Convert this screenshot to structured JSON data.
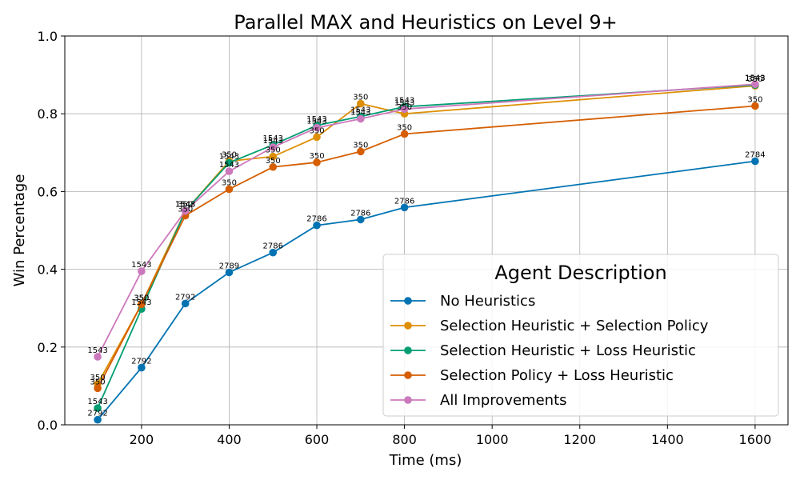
{
  "chart_data": {
    "type": "line",
    "title": "Parallel MAX and Heuristics on Level 9+",
    "xlabel": "Time (ms)",
    "ylabel": "Win Percentage",
    "xlim": [
      25,
      1675
    ],
    "ylim": [
      0.0,
      1.0
    ],
    "xticks": [
      200,
      400,
      600,
      800,
      1000,
      1200,
      1400,
      1600
    ],
    "yticks": [
      0.0,
      0.2,
      0.4,
      0.6,
      0.8,
      1.0
    ],
    "grid": true,
    "legend": {
      "title": "Agent Description",
      "placement": "lower-right"
    },
    "series": [
      {
        "name": "No Heuristics",
        "color": "#0173b2",
        "x": [
          100,
          200,
          300,
          400,
          500,
          600,
          700,
          800,
          1600
        ],
        "y": [
          0.013,
          0.147,
          0.312,
          0.392,
          0.443,
          0.513,
          0.528,
          0.559,
          0.678
        ],
        "labels": [
          "2792",
          "2792",
          "2792",
          "2789",
          "2786",
          "2786",
          "2786",
          "2786",
          "2784"
        ]
      },
      {
        "name": "Selection Heuristic + Selection Policy",
        "color": "#de8f05",
        "x": [
          100,
          200,
          300,
          400,
          500,
          600,
          700,
          800,
          1600
        ],
        "y": [
          0.105,
          0.31,
          0.55,
          0.678,
          0.69,
          0.74,
          0.826,
          0.8,
          0.872
        ],
        "labels": [
          "350",
          "350",
          "350",
          "350",
          "350",
          "350",
          "350",
          "350",
          "350"
        ]
      },
      {
        "name": "Selection Heuristic + Loss Heuristic",
        "color": "#029e73",
        "x": [
          100,
          200,
          300,
          400,
          500,
          600,
          700,
          800,
          1600
        ],
        "y": [
          0.043,
          0.298,
          0.55,
          0.674,
          0.72,
          0.77,
          0.793,
          0.818,
          0.874
        ],
        "labels": [
          "1543",
          "1543",
          "1543",
          "1543",
          "1543",
          "1543",
          "1543",
          "1543",
          "1543"
        ]
      },
      {
        "name": "Selection Policy + Loss Heuristic",
        "color": "#d55e00",
        "x": [
          100,
          200,
          300,
          400,
          500,
          600,
          700,
          800,
          1600
        ],
        "y": [
          0.094,
          0.31,
          0.538,
          0.606,
          0.663,
          0.675,
          0.703,
          0.748,
          0.82
        ],
        "labels": [
          "350",
          "350",
          "350",
          "350",
          "350",
          "350",
          "350",
          "350",
          "350"
        ]
      },
      {
        "name": "All Improvements",
        "color": "#cc78bc",
        "x": [
          100,
          200,
          300,
          400,
          500,
          600,
          700,
          800,
          1600
        ],
        "y": [
          0.175,
          0.395,
          0.55,
          0.652,
          0.714,
          0.764,
          0.787,
          0.812,
          0.876
        ],
        "labels": [
          "1543",
          "1543",
          "1543",
          "1543",
          "1543",
          "1543",
          "1543",
          "1543",
          "1543"
        ]
      }
    ]
  }
}
